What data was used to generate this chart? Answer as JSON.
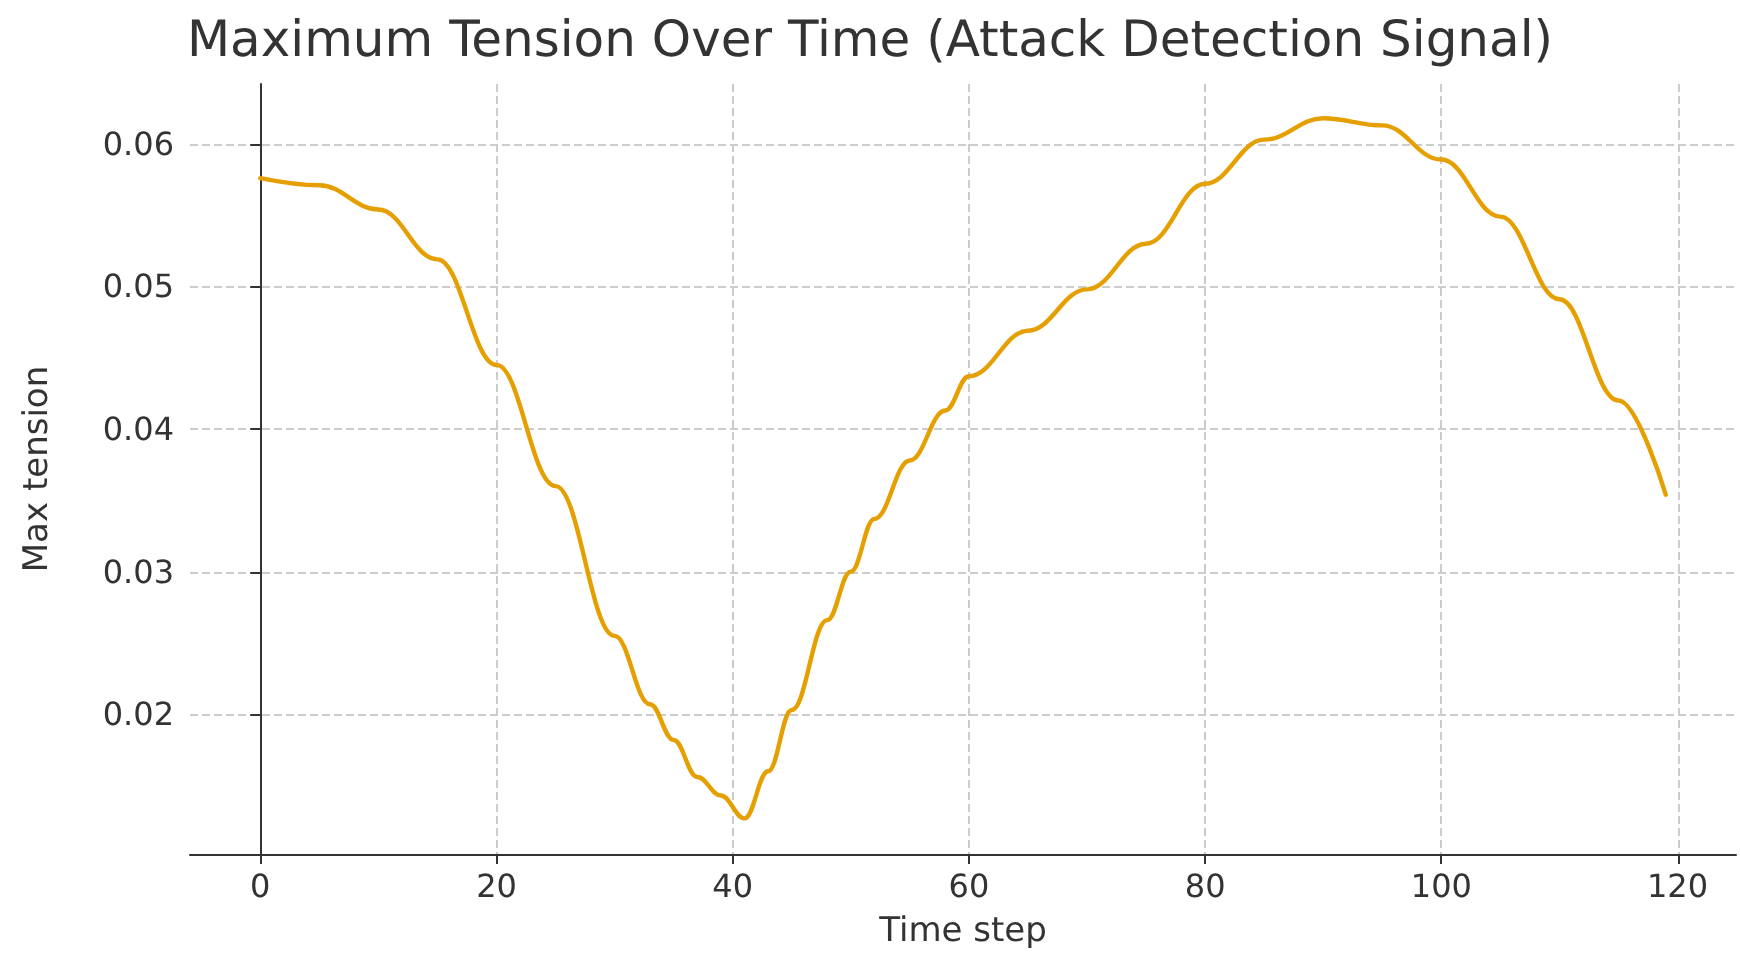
{
  "chart_data": {
    "type": "line",
    "title": "Maximum Tension Over Time (Attack Detection Signal)",
    "xlabel": "Time step",
    "ylabel": "Max tension",
    "x": [
      0,
      5,
      10,
      15,
      20,
      25,
      30,
      33,
      35,
      37,
      39,
      41,
      43,
      45,
      48,
      50,
      52,
      55,
      58,
      60,
      65,
      70,
      75,
      80,
      85,
      90,
      95,
      100,
      105,
      110,
      115,
      119
    ],
    "series": [
      {
        "color": "#e69f00",
        "values": [
          0.0576,
          0.0571,
          0.0554,
          0.0519,
          0.0445,
          0.036,
          0.0255,
          0.0207,
          0.0182,
          0.0156,
          0.0143,
          0.0127,
          0.016,
          0.0203,
          0.0266,
          0.03,
          0.0337,
          0.0378,
          0.0413,
          0.0437,
          0.0469,
          0.0498,
          0.053,
          0.0572,
          0.0603,
          0.0618,
          0.0613,
          0.0589,
          0.0549,
          0.0491,
          0.042,
          0.0354
        ]
      }
    ],
    "xlim": [
      -5.95,
      124.95
    ],
    "ylim": [
      0.0102,
      0.0642
    ],
    "xticks": [
      0,
      20,
      40,
      60,
      80,
      100,
      120
    ],
    "yticks": [
      0.02,
      0.03,
      0.04,
      0.05,
      0.06
    ],
    "grid": true,
    "marker": "none",
    "line_style": "solid"
  }
}
